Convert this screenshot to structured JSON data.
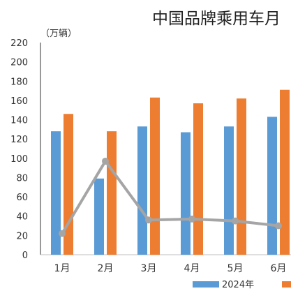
{
  "chart_data": {
    "type": "bar",
    "title": "中国品牌乘用车月",
    "unit": "（万辆）",
    "categories": [
      "1月",
      "2月",
      "3月",
      "4月",
      "5月",
      "6月"
    ],
    "yticks": [
      "0",
      "20",
      "40",
      "60",
      "80",
      "100",
      "120",
      "140",
      "160",
      "180",
      "200",
      "220"
    ],
    "ylim": [
      0,
      220
    ],
    "grid": false,
    "series": [
      {
        "name": "2024年",
        "kind": "bar",
        "color": "#5b9bd5",
        "values": [
          128,
          79,
          133,
          127,
          133,
          143
        ]
      },
      {
        "name": "",
        "kind": "bar",
        "color": "#ed7d31",
        "values": [
          146,
          128,
          163,
          157,
          162,
          171
        ]
      },
      {
        "name": "",
        "kind": "line",
        "color": "#a5a5a5",
        "values": [
          22,
          97,
          36,
          37,
          35,
          30
        ]
      }
    ],
    "legend": {
      "placement": "bottom"
    }
  }
}
